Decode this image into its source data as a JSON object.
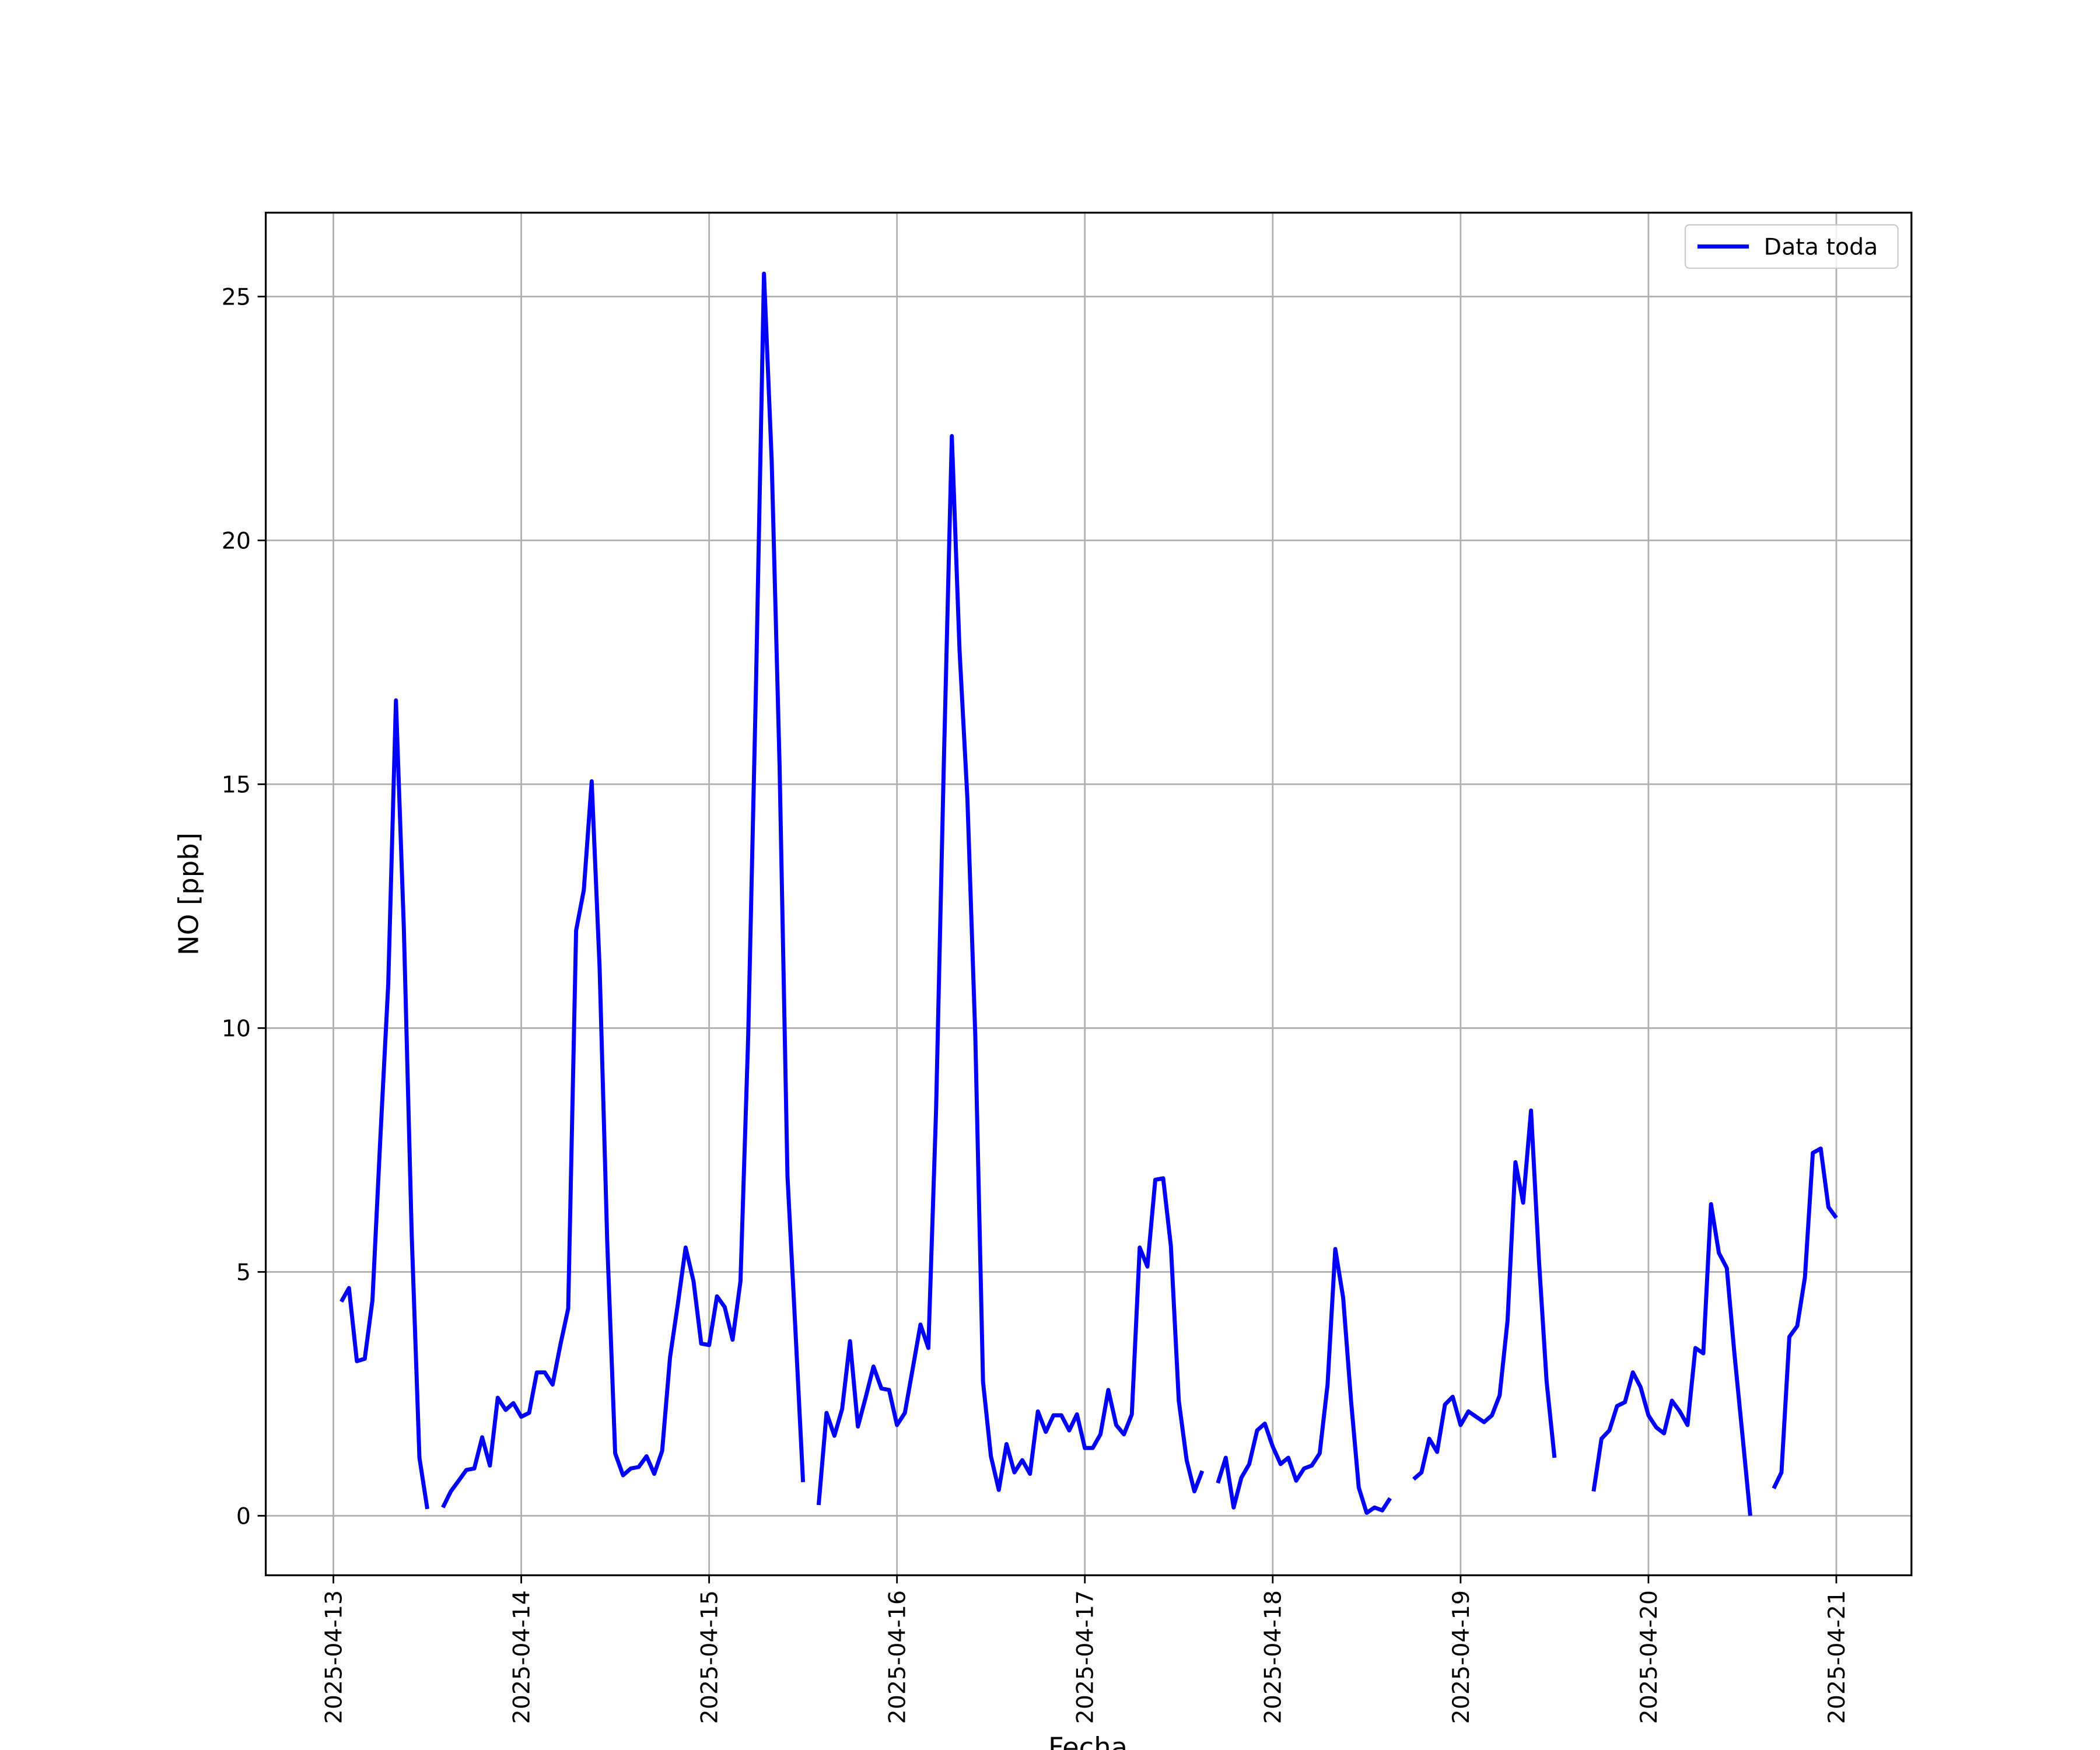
{
  "chart_data": {
    "type": "line",
    "xlabel": "Fecha",
    "ylabel": "NO [ppb]",
    "x": [
      20191.042,
      20191.083,
      20191.125,
      20191.167,
      20191.208,
      20191.25,
      20191.292,
      20191.333,
      20191.375,
      20191.417,
      20191.458,
      20191.5,
      20191.542,
      20191.583,
      20191.625,
      20191.667,
      20191.708,
      20191.75,
      20191.792,
      20191.833,
      20191.875,
      20191.917,
      20191.958,
      20192,
      20192.042,
      20192.083,
      20192.125,
      20192.167,
      20192.208,
      20192.25,
      20192.292,
      20192.333,
      20192.375,
      20192.417,
      20192.458,
      20192.5,
      20192.542,
      20192.583,
      20192.625,
      20192.667,
      20192.708,
      20192.75,
      20192.792,
      20192.833,
      20192.875,
      20192.917,
      20192.958,
      20193,
      20193.042,
      20193.083,
      20193.125,
      20193.167,
      20193.208,
      20193.25,
      20193.292,
      20193.333,
      20193.375,
      20193.417,
      20193.458,
      20193.5,
      20193.542,
      20193.583,
      20193.625,
      20193.667,
      20193.708,
      20193.75,
      20193.792,
      20193.833,
      20193.875,
      20193.917,
      20193.958,
      20194,
      20194.042,
      20194.083,
      20194.125,
      20194.167,
      20194.208,
      20194.25,
      20194.292,
      20194.333,
      20194.375,
      20194.417,
      20194.458,
      20194.5,
      20194.542,
      20194.583,
      20194.625,
      20194.667,
      20194.708,
      20194.75,
      20194.792,
      20194.833,
      20194.875,
      20194.917,
      20194.958,
      20195,
      20195.042,
      20195.083,
      20195.125,
      20195.167,
      20195.208,
      20195.25,
      20195.292,
      20195.333,
      20195.375,
      20195.417,
      20195.458,
      20195.5,
      20195.542,
      20195.583,
      20195.625,
      20195.667,
      20195.708,
      20195.75,
      20195.792,
      20195.833,
      20195.875,
      20195.917,
      20195.958,
      20196,
      20196.042,
      20196.083,
      20196.125,
      20196.167,
      20196.208,
      20196.25,
      20196.292,
      20196.333,
      20196.375,
      20196.417,
      20196.458,
      20196.5,
      20196.542,
      20196.583,
      20196.625,
      20196.667,
      20196.708,
      20196.75,
      20196.792,
      20196.833,
      20196.875,
      20196.917,
      20196.958,
      20197,
      20197.042,
      20197.083,
      20197.125,
      20197.167,
      20197.208,
      20197.25,
      20197.292,
      20197.333,
      20197.375,
      20197.417,
      20197.458,
      20197.5,
      20197.542,
      20197.583,
      20197.625,
      20197.667,
      20197.708,
      20197.75,
      20197.792,
      20197.833,
      20197.875,
      20197.917,
      20197.958,
      20198,
      20198.042,
      20198.083,
      20198.125,
      20198.167,
      20198.208,
      20198.25,
      20198.292,
      20198.333,
      20198.375,
      20198.417,
      20198.458,
      20198.5,
      20198.542,
      20198.583,
      20198.625,
      20198.667,
      20198.708,
      20198.75,
      20198.792,
      20198.833,
      20198.875,
      20198.917,
      20198.958,
      20199
    ],
    "series": [
      {
        "name": "Data toda",
        "color": "#0000ff",
        "values": [
          4.39,
          4.67,
          3.17,
          3.22,
          4.42,
          7.75,
          10.9,
          16.72,
          12.06,
          5.75,
          1.19,
          0.14,
          null,
          0.17,
          0.5,
          0.72,
          0.94,
          0.97,
          1.61,
          1.03,
          2.42,
          2.17,
          2.31,
          2.03,
          2.11,
          2.94,
          2.94,
          2.69,
          3.5,
          4.25,
          12.0,
          12.83,
          15.06,
          11.25,
          5.58,
          1.28,
          0.83,
          0.97,
          1.0,
          1.22,
          0.86,
          1.33,
          3.25,
          4.33,
          5.5,
          4.81,
          3.53,
          3.5,
          4.5,
          4.28,
          3.61,
          4.81,
          9.83,
          17.11,
          25.47,
          21.64,
          15.39,
          6.97,
          3.92,
          0.69,
          null,
          0.22,
          2.11,
          1.64,
          2.19,
          3.58,
          1.83,
          2.42,
          3.06,
          2.61,
          2.58,
          1.86,
          2.11,
          3.0,
          3.92,
          3.44,
          8.31,
          15.53,
          22.14,
          17.75,
          14.69,
          9.83,
          2.75,
          1.22,
          0.53,
          1.47,
          0.89,
          1.14,
          0.86,
          2.14,
          1.72,
          2.06,
          2.06,
          1.75,
          2.08,
          1.39,
          1.39,
          1.67,
          2.58,
          1.86,
          1.67,
          2.08,
          5.5,
          5.11,
          6.89,
          6.92,
          5.53,
          2.36,
          1.14,
          0.5,
          0.92,
          null,
          0.67,
          1.19,
          0.17,
          0.78,
          1.06,
          1.75,
          1.89,
          1.42,
          1.06,
          1.19,
          0.72,
          0.97,
          1.03,
          1.28,
          2.69,
          5.47,
          4.47,
          2.36,
          0.58,
          0.06,
          0.17,
          0.11,
          0.36,
          null,
          null,
          0.75,
          0.89,
          1.58,
          1.31,
          2.28,
          2.44,
          1.86,
          2.14,
          2.03,
          1.92,
          2.06,
          2.47,
          4.0,
          7.25,
          6.42,
          8.31,
          5.25,
          2.75,
          1.19,
          null,
          null,
          null,
          null,
          0.5,
          1.58,
          1.75,
          2.25,
          2.33,
          2.94,
          2.64,
          2.06,
          1.81,
          1.69,
          2.36,
          2.14,
          1.86,
          3.44,
          3.33,
          6.39,
          5.39,
          5.08,
          3.31,
          1.67,
          0.0,
          null,
          null,
          0.56,
          0.89,
          3.67,
          3.89,
          4.89,
          7.44,
          7.53,
          6.33,
          6.11
        ]
      }
    ],
    "xlim": [
      20190.64,
      20199.4
    ],
    "xticks": [
      {
        "value": 20191,
        "label": "2025-04-13"
      },
      {
        "value": 20192,
        "label": "2025-04-14"
      },
      {
        "value": 20193,
        "label": "2025-04-15"
      },
      {
        "value": 20194,
        "label": "2025-04-16"
      },
      {
        "value": 20195,
        "label": "2025-04-17"
      },
      {
        "value": 20196,
        "label": "2025-04-18"
      },
      {
        "value": 20197,
        "label": "2025-04-19"
      },
      {
        "value": 20198,
        "label": "2025-04-20"
      },
      {
        "value": 20199,
        "label": "2025-04-21"
      }
    ],
    "ylim": [
      -1.22,
      26.72
    ],
    "yticks": [
      0,
      5,
      10,
      15,
      20,
      25
    ],
    "grid": true,
    "legend": "upper right"
  }
}
